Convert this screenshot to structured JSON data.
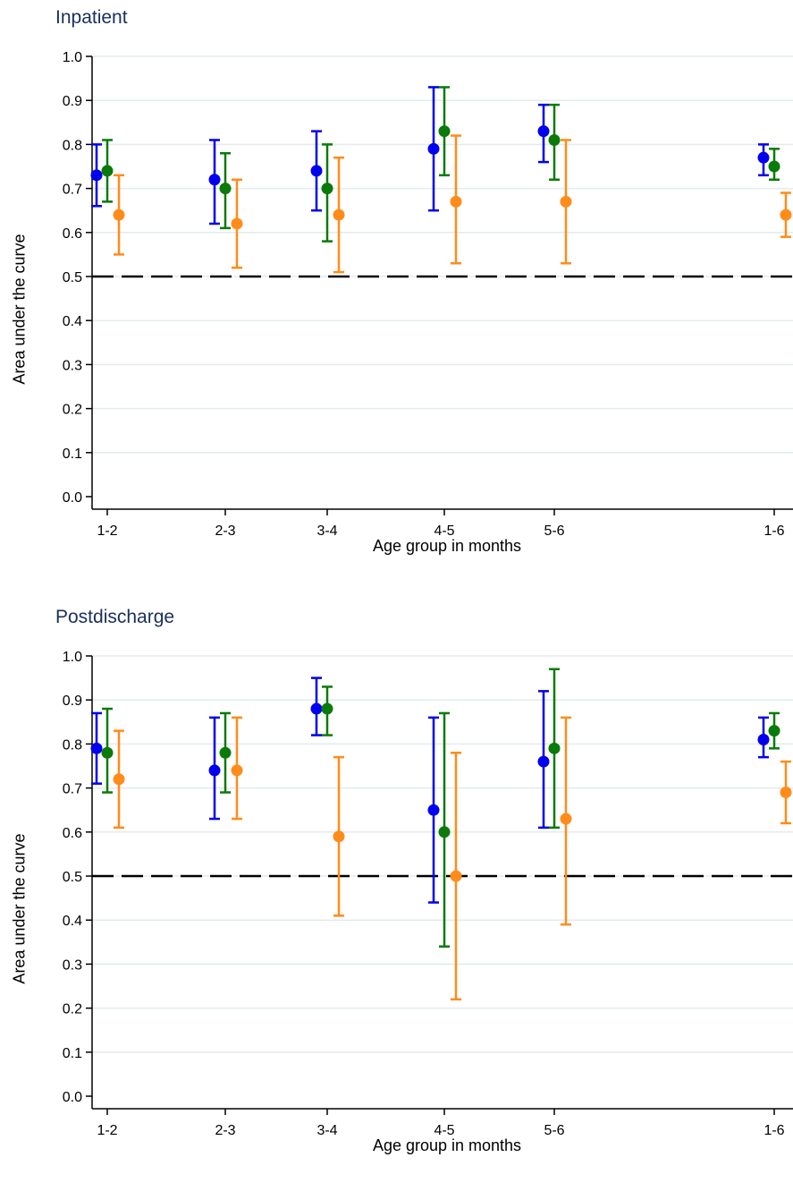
{
  "chart_data": [
    {
      "type": "errorbar",
      "title": "Inpatient",
      "xlabel": "Age group in months",
      "ylabel": "Area under the curve",
      "ylim": [
        0.0,
        1.0
      ],
      "yticks": [
        "0.0",
        "0.1",
        "0.2",
        "0.3",
        "0.4",
        "0.5",
        "0.6",
        "0.7",
        "0.8",
        "0.9",
        "1.0"
      ],
      "categories": [
        "1-2",
        "2-3",
        "3-4",
        "4-5",
        "5-6",
        "1-6"
      ],
      "reference_line": 0.5,
      "grid": true,
      "series": [
        {
          "color": "#0000ee",
          "values": [
            0.73,
            0.72,
            0.74,
            0.79,
            0.83,
            0.77
          ],
          "lower": [
            0.66,
            0.62,
            0.65,
            0.65,
            0.76,
            0.73
          ],
          "upper": [
            0.8,
            0.81,
            0.83,
            0.93,
            0.89,
            0.8
          ]
        },
        {
          "color": "#0a7a0a",
          "values": [
            0.74,
            0.7,
            0.7,
            0.83,
            0.81,
            0.75
          ],
          "lower": [
            0.67,
            0.61,
            0.58,
            0.73,
            0.72,
            0.72
          ],
          "upper": [
            0.81,
            0.78,
            0.8,
            0.93,
            0.89,
            0.79
          ]
        },
        {
          "color": "#ff8c1a",
          "values": [
            0.64,
            0.62,
            0.64,
            0.67,
            0.67,
            0.64
          ],
          "lower": [
            0.55,
            0.52,
            0.51,
            0.53,
            0.53,
            0.59
          ],
          "upper": [
            0.73,
            0.72,
            0.77,
            0.82,
            0.81,
            0.69
          ]
        }
      ]
    },
    {
      "type": "errorbar",
      "title": "Postdischarge",
      "xlabel": "Age group in months",
      "ylabel": "Area under the curve",
      "ylim": [
        0.0,
        1.0
      ],
      "yticks": [
        "0.0",
        "0.1",
        "0.2",
        "0.3",
        "0.4",
        "0.5",
        "0.6",
        "0.7",
        "0.8",
        "0.9",
        "1.0"
      ],
      "categories": [
        "1-2",
        "2-3",
        "3-4",
        "4-5",
        "5-6",
        "1-6"
      ],
      "reference_line": 0.5,
      "grid": true,
      "series": [
        {
          "color": "#0000ee",
          "values": [
            0.79,
            0.74,
            0.88,
            0.65,
            0.76,
            0.81
          ],
          "lower": [
            0.71,
            0.63,
            0.82,
            0.44,
            0.61,
            0.77
          ],
          "upper": [
            0.87,
            0.86,
            0.95,
            0.86,
            0.92,
            0.86
          ]
        },
        {
          "color": "#0a7a0a",
          "values": [
            0.78,
            0.78,
            0.88,
            0.6,
            0.79,
            0.83
          ],
          "lower": [
            0.69,
            0.69,
            0.82,
            0.34,
            0.61,
            0.79
          ],
          "upper": [
            0.88,
            0.87,
            0.93,
            0.87,
            0.97,
            0.87
          ]
        },
        {
          "color": "#ff8c1a",
          "values": [
            0.72,
            0.74,
            0.59,
            0.5,
            0.63,
            0.69
          ],
          "lower": [
            0.61,
            0.63,
            0.41,
            0.22,
            0.39,
            0.62
          ],
          "upper": [
            0.83,
            0.86,
            0.77,
            0.78,
            0.86,
            0.76
          ]
        }
      ]
    }
  ]
}
